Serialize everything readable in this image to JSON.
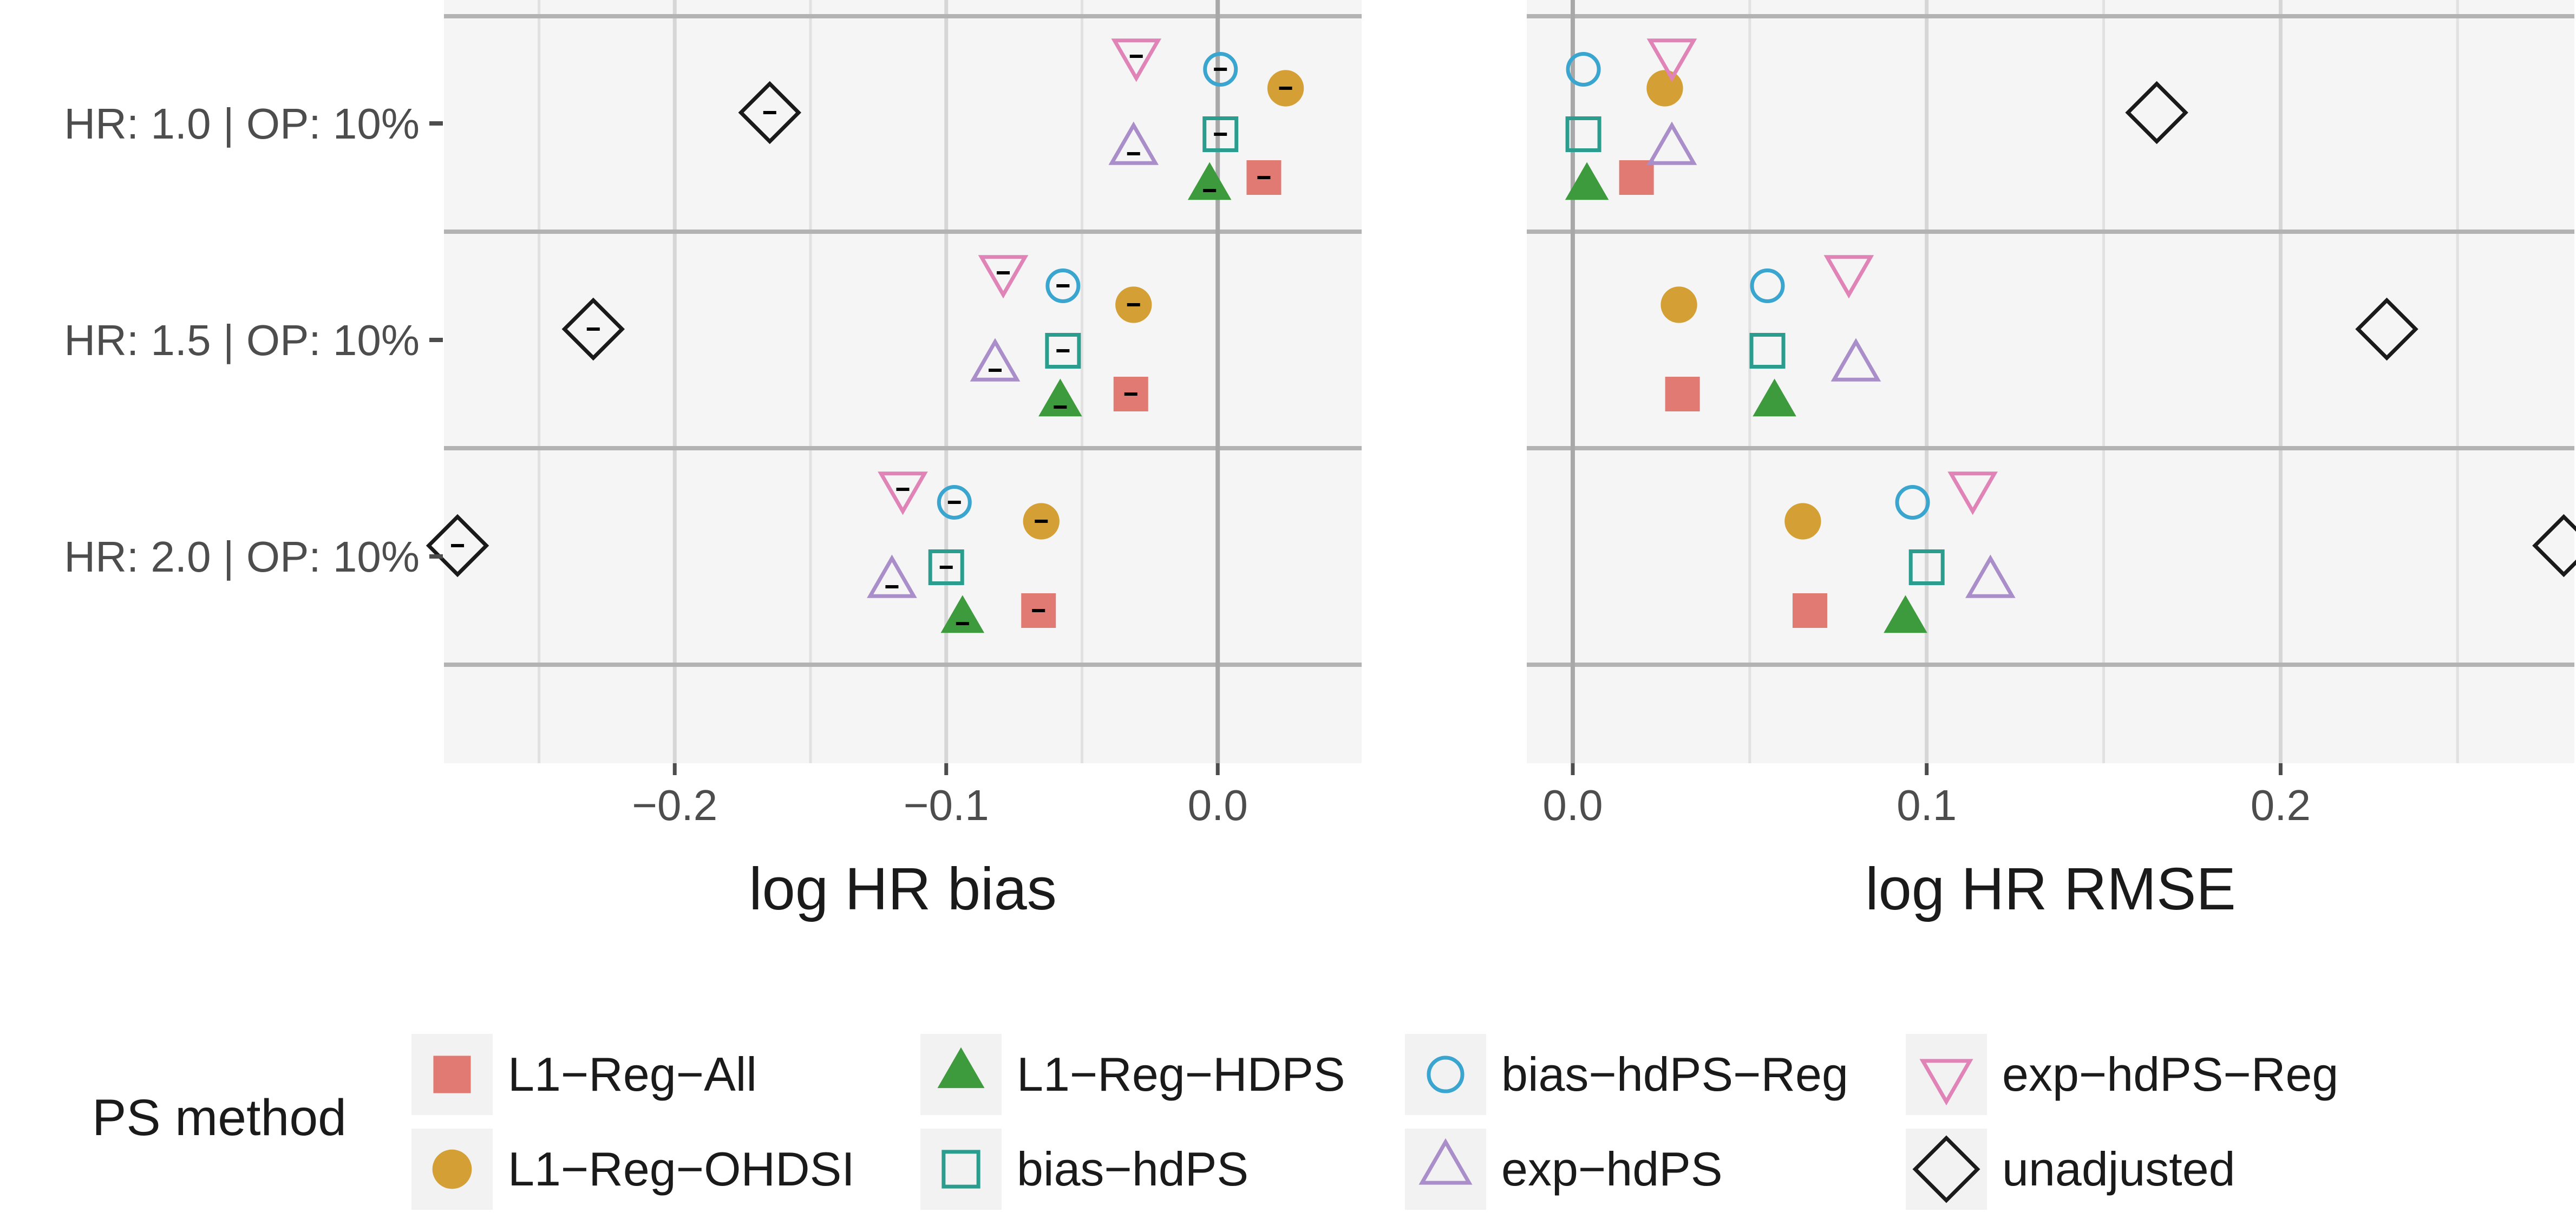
{
  "chart_data": {
    "type": "scatter",
    "rows": [
      "HR: 1.0 |  OP: 10%",
      "HR: 1.5 |  OP: 10%",
      "HR: 2.0 |  OP: 10%"
    ],
    "methods": [
      "L1−Reg−All",
      "L1−Reg−OHDSI",
      "L1−Reg−HDPS",
      "bias−hdPS",
      "bias−hdPS−Reg",
      "exp−hdPS",
      "exp−hdPS−Reg",
      "unadjusted"
    ],
    "shapes": [
      "square",
      "circle",
      "triangle",
      "square-open",
      "circle-open",
      "triangle-open",
      "triangle-down-open",
      "diamond-open"
    ],
    "colors": [
      "#e07a73",
      "#d4a035",
      "#3d9a3d",
      "#2a9d8f",
      "#3aa5cf",
      "#a98ec9",
      "#e084b8",
      "#1a1a1a"
    ],
    "legend_title": "PS method",
    "panels": [
      {
        "xlabel": "log HR bias",
        "xlim": [
          -0.285,
          0.053
        ],
        "xticks": [
          -0.2,
          -0.1,
          0.0
        ],
        "tick_labels": [
          "−0.2",
          "−0.1",
          "0.0"
        ],
        "minor_ticks": [
          -0.25,
          -0.15,
          -0.05
        ],
        "zero_line": 0.0,
        "has_error_bars": true,
        "series": [
          {
            "method": "L1−Reg−All",
            "values": [
              0.017,
              -0.032,
              -0.066
            ]
          },
          {
            "method": "L1−Reg−OHDSI",
            "values": [
              0.025,
              -0.031,
              -0.065
            ]
          },
          {
            "method": "L1−Reg−HDPS",
            "values": [
              -0.003,
              -0.058,
              -0.094
            ]
          },
          {
            "method": "bias−hdPS",
            "values": [
              0.001,
              -0.057,
              -0.1
            ]
          },
          {
            "method": "bias−hdPS−Reg",
            "values": [
              0.001,
              -0.057,
              -0.097
            ]
          },
          {
            "method": "exp−hdPS",
            "values": [
              -0.031,
              -0.082,
              -0.12
            ]
          },
          {
            "method": "exp−hdPS−Reg",
            "values": [
              -0.03,
              -0.079,
              -0.116
            ]
          },
          {
            "method": "unadjusted",
            "values": [
              -0.165,
              -0.23,
              -0.28
            ]
          }
        ]
      },
      {
        "xlabel": "log HR RMSE",
        "xlim": [
          -0.013,
          0.283
        ],
        "xticks": [
          0.0,
          0.1,
          0.2
        ],
        "tick_labels": [
          "0.0",
          "0.1",
          "0.2"
        ],
        "minor_ticks": [
          0.05,
          0.15,
          0.25
        ],
        "zero_line": 0.0,
        "has_error_bars": false,
        "series": [
          {
            "method": "L1−Reg−All",
            "values": [
              0.018,
              0.031,
              0.067
            ]
          },
          {
            "method": "L1−Reg−OHDSI",
            "values": [
              0.026,
              0.03,
              0.065
            ]
          },
          {
            "method": "L1−Reg−HDPS",
            "values": [
              0.004,
              0.057,
              0.094
            ]
          },
          {
            "method": "bias−hdPS",
            "values": [
              0.003,
              0.055,
              0.1
            ]
          },
          {
            "method": "bias−hdPS−Reg",
            "values": [
              0.003,
              0.055,
              0.096
            ]
          },
          {
            "method": "exp−hdPS",
            "values": [
              0.028,
              0.08,
              0.118
            ]
          },
          {
            "method": "exp−hdPS−Reg",
            "values": [
              0.028,
              0.078,
              0.113
            ]
          },
          {
            "method": "unadjusted",
            "values": [
              0.165,
              0.23,
              0.28
            ]
          }
        ]
      }
    ]
  }
}
